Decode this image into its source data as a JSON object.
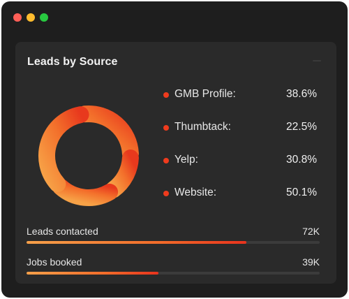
{
  "window": {
    "controls": [
      "close",
      "minimize",
      "maximize"
    ],
    "colors": {
      "close": "#fe5f57",
      "minimize": "#febc2e",
      "maximize": "#28c840"
    }
  },
  "card": {
    "title": "Leads by Source",
    "icons": {
      "menu": "menu-icon"
    }
  },
  "chart_data": {
    "type": "pie",
    "categories": [
      "GMB Profile",
      "Thumbtack",
      "Yelp",
      "Website"
    ],
    "values": [
      38.6,
      22.5,
      30.8,
      50.1
    ],
    "value_labels": [
      "38.6%",
      "22.5%",
      "30.8%",
      "50.1%"
    ],
    "colors": {
      "light": "#f7a247",
      "mid": "#f3702b",
      "dark": "#e8391d"
    }
  },
  "legend": [
    {
      "label": "GMB Profile:",
      "value": "38.6%"
    },
    {
      "label": "Thumbtack:",
      "value": "22.5%"
    },
    {
      "label": "Yelp:",
      "value": "30.8%"
    },
    {
      "label": "Website:",
      "value": "50.1%"
    }
  ],
  "metrics": [
    {
      "label": "Leads contacted",
      "value": "72K",
      "progress": 0.75
    },
    {
      "label": "Jobs booked",
      "value": "39K",
      "progress": 0.45
    }
  ]
}
